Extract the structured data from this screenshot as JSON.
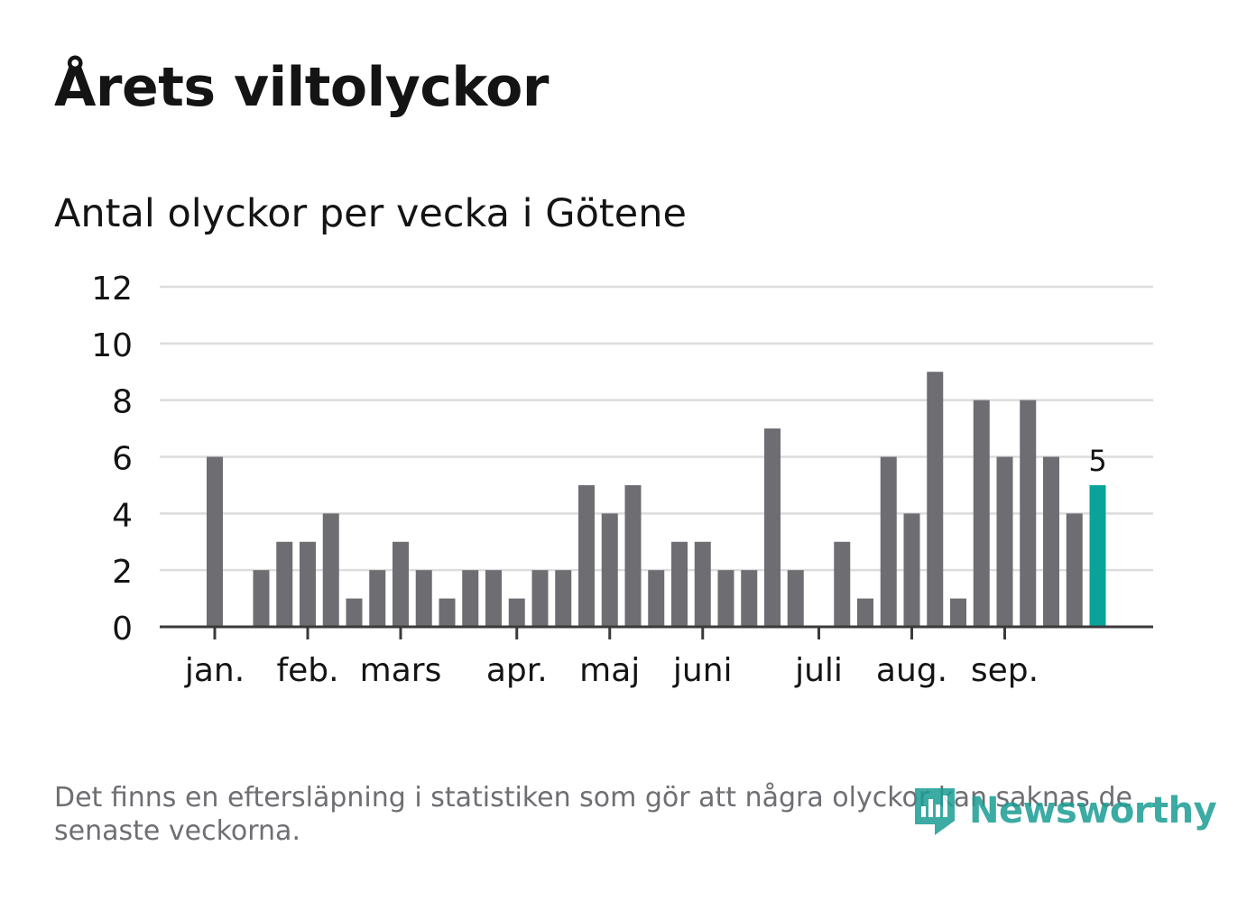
{
  "chart_data": {
    "type": "bar",
    "title": "Årets viltolyckor",
    "subtitle": "Antal olyckor per vecka i Götene",
    "xlabel": "",
    "ylabel": "",
    "ylim": [
      0,
      12
    ],
    "yticks": [
      0,
      2,
      4,
      6,
      8,
      10,
      12
    ],
    "grid": true,
    "values": [
      6,
      0,
      2,
      3,
      3,
      4,
      1,
      2,
      3,
      2,
      1,
      2,
      2,
      1,
      2,
      2,
      5,
      4,
      5,
      2,
      3,
      3,
      2,
      2,
      7,
      2,
      0,
      3,
      1,
      6,
      4,
      9,
      1,
      8,
      6,
      8,
      6,
      4,
      5
    ],
    "highlight_index": 38,
    "highlight_label": "5",
    "months": [
      {
        "label": "jan.",
        "bar_index": 0
      },
      {
        "label": "feb.",
        "bar_index": 4
      },
      {
        "label": "mars",
        "bar_index": 8
      },
      {
        "label": "apr.",
        "bar_index": 13
      },
      {
        "label": "maj",
        "bar_index": 17
      },
      {
        "label": "juni",
        "bar_index": 21
      },
      {
        "label": "juli",
        "bar_index": 26
      },
      {
        "label": "aug.",
        "bar_index": 30
      },
      {
        "label": "sep.",
        "bar_index": 34
      }
    ],
    "colors": {
      "bar": "#6e6d72",
      "highlight": "#0aa39a",
      "grid": "#dcdcdc",
      "axis": "#3a3a3a",
      "text": "#141414"
    }
  },
  "footnote": "Det finns en eftersläpning i statistiken som gör att några olyckor kan saknas de senaste veckorna.",
  "logo": {
    "text": "Newsworthy",
    "icon": "newsworthy-logo-icon",
    "color": "#1a9d94"
  }
}
